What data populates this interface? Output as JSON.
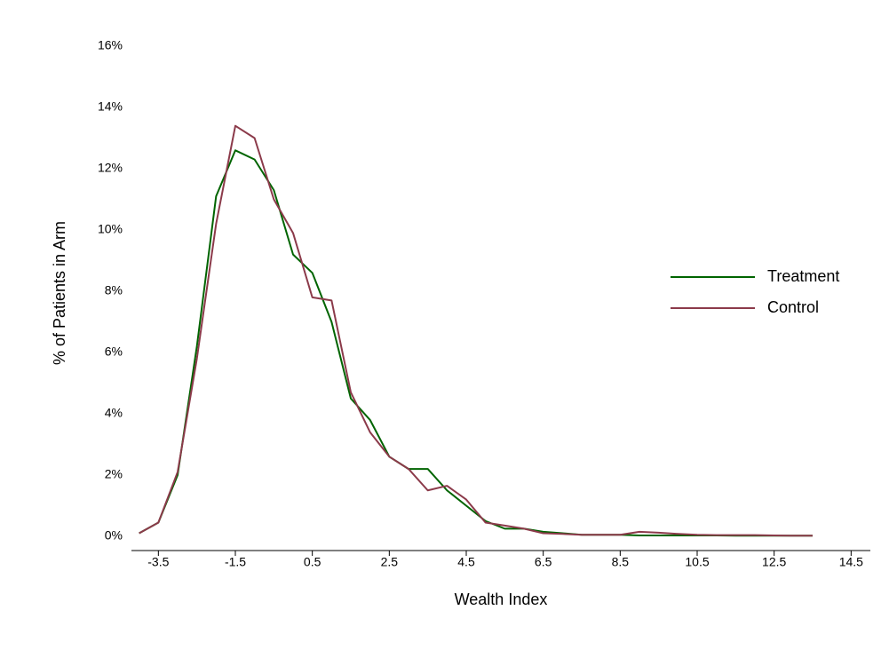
{
  "chart_data": {
    "type": "line",
    "x_label": "Wealth Index",
    "y_label": "% of Patients in Arm",
    "x": [
      -4,
      -3.5,
      -3,
      -2.5,
      -2,
      -1.5,
      -1,
      -0.5,
      0,
      0.5,
      1,
      1.5,
      2,
      2.5,
      3,
      3.5,
      4,
      4.5,
      5,
      5.5,
      6,
      6.5,
      7,
      7.5,
      8,
      8.5,
      9,
      9.5,
      10,
      10.5,
      11,
      11.5,
      12,
      12.5,
      13,
      13.5
    ],
    "series": [
      {
        "name": "Treatment",
        "color": "#006400",
        "values": [
          0.1,
          0.45,
          2.0,
          6.2,
          11.1,
          12.6,
          12.3,
          11.3,
          9.2,
          8.6,
          7.0,
          4.5,
          3.8,
          2.6,
          2.2,
          2.2,
          1.5,
          1.0,
          0.5,
          0.25,
          0.25,
          0.15,
          0.1,
          0.05,
          0.05,
          0.05,
          0.03,
          0.03,
          0.03,
          0.03,
          0.03,
          0.02,
          0.02,
          0.02,
          0.02,
          0.02
        ]
      },
      {
        "name": "Control",
        "color": "#8b3a4a",
        "values": [
          0.1,
          0.45,
          2.1,
          5.8,
          10.2,
          13.4,
          13.0,
          11.0,
          9.9,
          7.8,
          7.7,
          4.7,
          3.4,
          2.6,
          2.2,
          1.5,
          1.65,
          1.2,
          0.45,
          0.35,
          0.25,
          0.1,
          0.08,
          0.05,
          0.05,
          0.05,
          0.15,
          0.12,
          0.08,
          0.05,
          0.04,
          0.04,
          0.04,
          0.03,
          0.02,
          0.02
        ]
      }
    ],
    "xlim": [
      -4.2,
      15
    ],
    "xticks": [
      -3.5,
      -1.5,
      0.5,
      2.5,
      4.5,
      6.5,
      8.5,
      10.5,
      12.5,
      14.5
    ],
    "ylim": [
      0,
      16
    ],
    "yticks": [
      {
        "value": 0,
        "label": "0%"
      },
      {
        "value": 2,
        "label": "2%"
      },
      {
        "value": 4,
        "label": "4%"
      },
      {
        "value": 6,
        "label": "6%"
      },
      {
        "value": 8,
        "label": "8%"
      },
      {
        "value": 10,
        "label": "10%"
      },
      {
        "value": 12,
        "label": "12%"
      },
      {
        "value": 14,
        "label": "14%"
      },
      {
        "value": 16,
        "label": "16%"
      }
    ],
    "grid": false,
    "legend": "right"
  }
}
